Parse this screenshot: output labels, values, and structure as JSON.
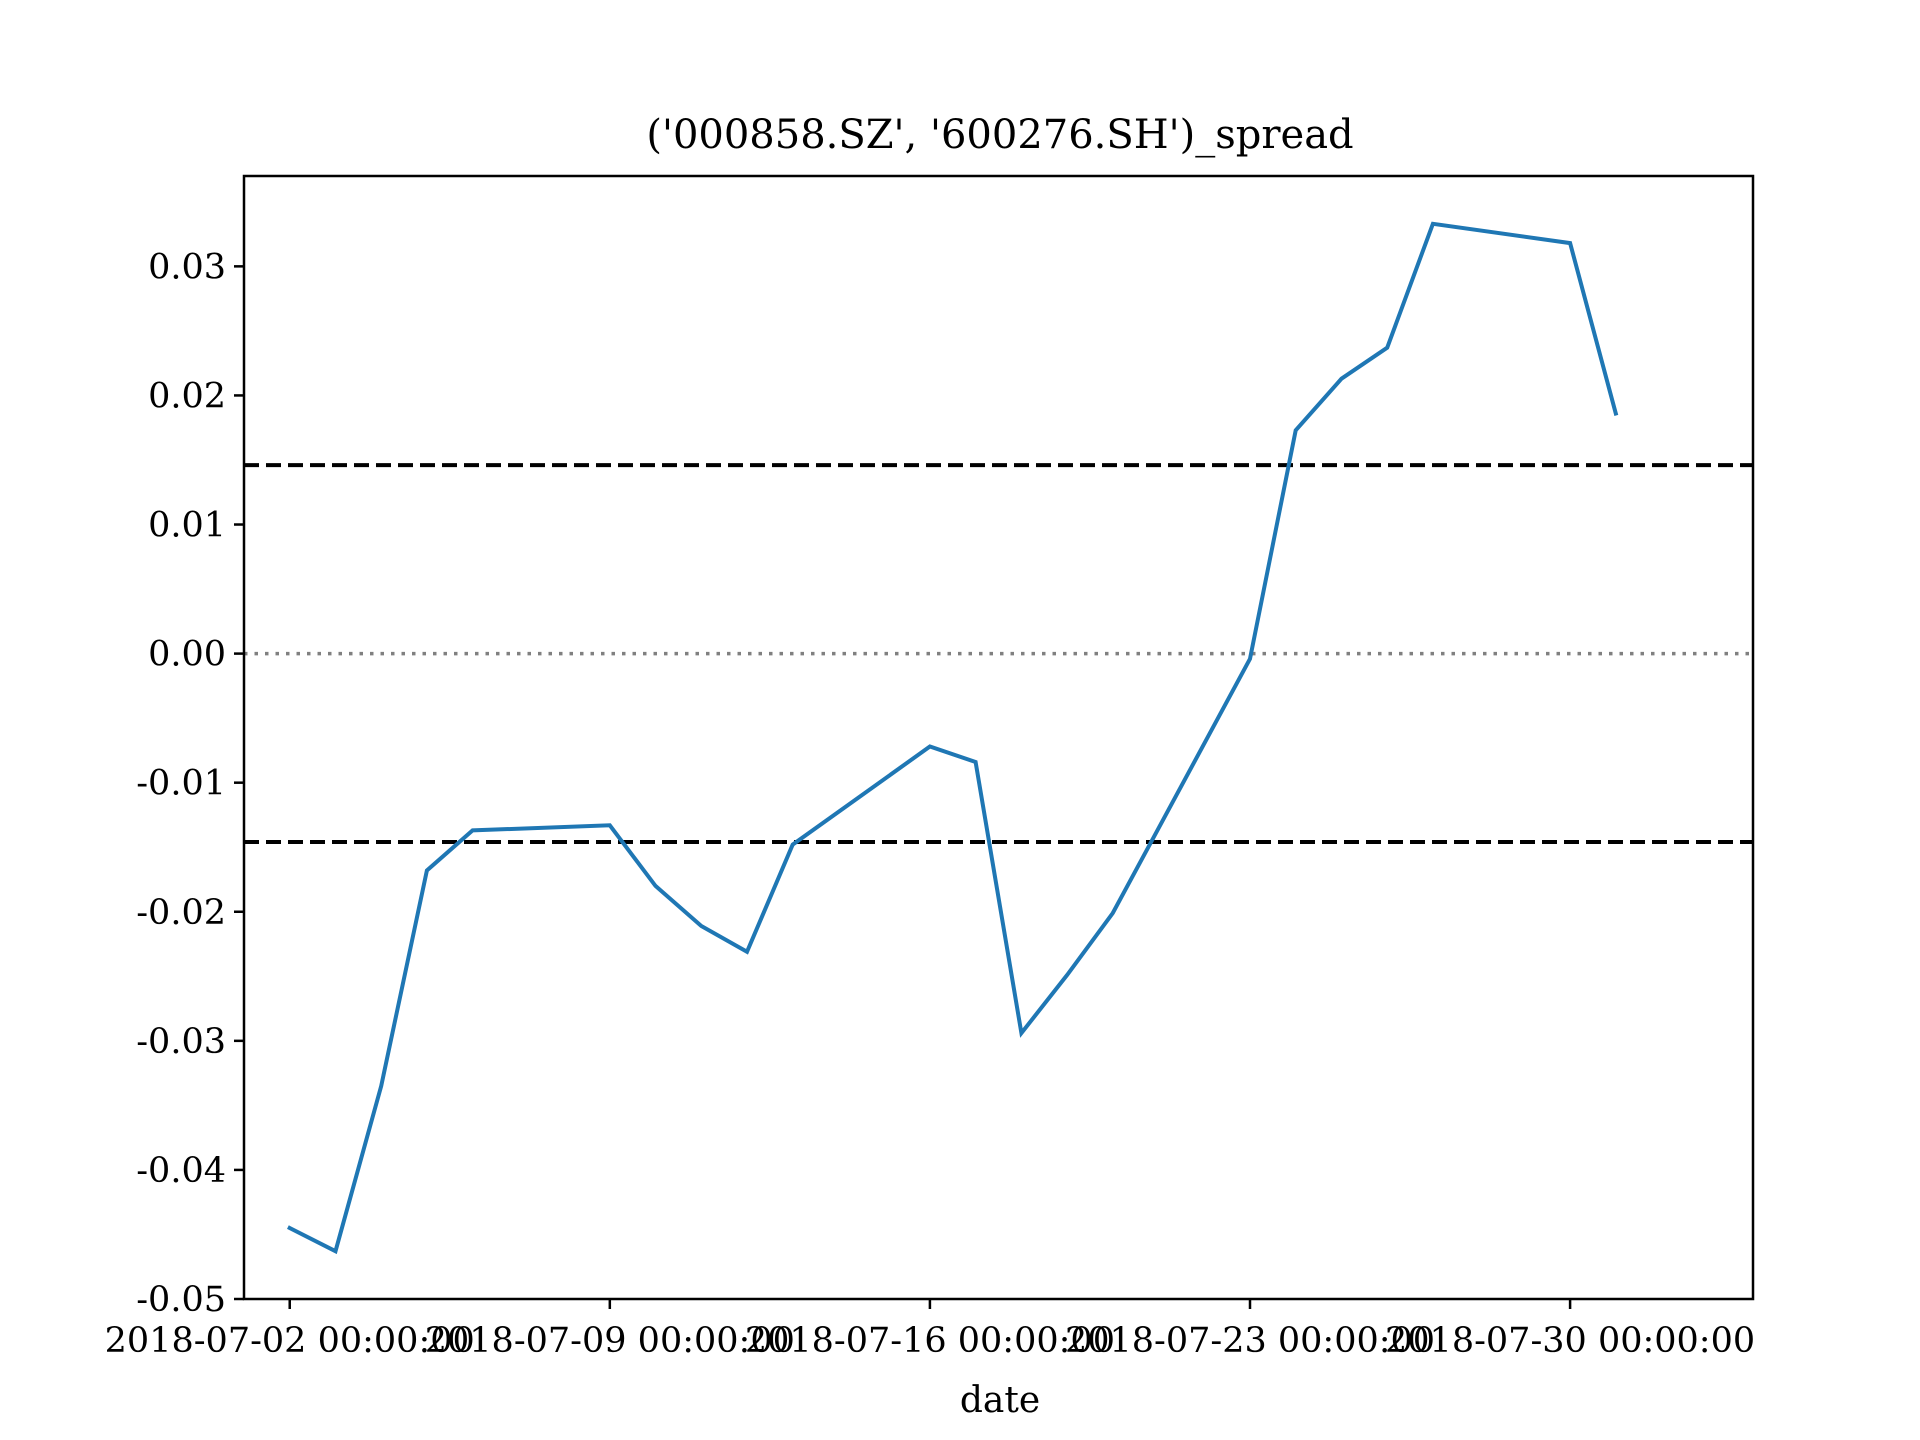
{
  "chart_data": {
    "type": "line",
    "title": "('000858.SZ', '600276.SH')_spread",
    "xlabel": "date",
    "ylabel": "",
    "ylim": [
      -0.05,
      0.037
    ],
    "xlim": [
      "2018-07-01",
      "2018-08-03"
    ],
    "yticks": [
      -0.05,
      -0.04,
      -0.03,
      -0.02,
      -0.01,
      0.0,
      0.01,
      0.02,
      0.03
    ],
    "ytick_labels": [
      "-0.05",
      "-0.04",
      "-0.03",
      "-0.02",
      "-0.01",
      "0.00",
      "0.01",
      "0.02",
      "0.03"
    ],
    "xticks": [
      "2018-07-02",
      "2018-07-09",
      "2018-07-16",
      "2018-07-23",
      "2018-07-30"
    ],
    "xtick_labels": [
      "2018-07-02 00:00:00",
      "2018-07-09 00:00:00",
      "2018-07-16 00:00:00",
      "2018-07-23 00:00:00",
      "2018-07-30 00:00:00"
    ],
    "grid": false,
    "series": [
      {
        "color": "#1f77b4",
        "x": [
          "2018-07-02",
          "2018-07-03",
          "2018-07-04",
          "2018-07-05",
          "2018-07-06",
          "2018-07-09",
          "2018-07-10",
          "2018-07-11",
          "2018-07-12",
          "2018-07-13",
          "2018-07-16",
          "2018-07-17",
          "2018-07-18",
          "2018-07-19",
          "2018-07-20",
          "2018-07-23",
          "2018-07-24",
          "2018-07-25",
          "2018-07-26",
          "2018-07-27",
          "2018-07-30",
          "2018-07-31"
        ],
        "values": [
          -0.0445,
          -0.0463,
          -0.0335,
          -0.0168,
          -0.0137,
          -0.0133,
          -0.018,
          -0.0211,
          -0.0231,
          -0.0148,
          -0.0072,
          -0.0084,
          -0.0294,
          -0.0249,
          -0.0201,
          -0.0004,
          0.0173,
          0.0213,
          0.0237,
          0.0333,
          0.0318,
          0.0186
        ]
      }
    ],
    "reference_lines": [
      {
        "y": 0.0146,
        "style": "dashed",
        "color": "#000000"
      },
      {
        "y": -0.0146,
        "style": "dashed",
        "color": "#000000"
      },
      {
        "y": 0.0,
        "style": "dotted",
        "color": "#808080"
      }
    ]
  }
}
